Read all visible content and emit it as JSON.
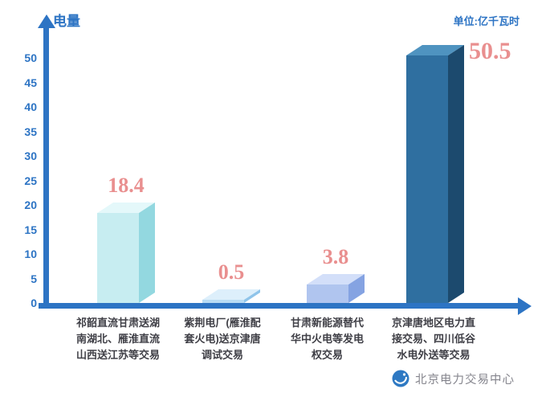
{
  "chart_data": {
    "type": "bar",
    "title": "",
    "ylabel": "电量",
    "unit": "单位:亿千瓦时",
    "xlabel": "",
    "ylim": [
      0,
      50
    ],
    "yticks": [
      0,
      5,
      10,
      15,
      20,
      25,
      30,
      35,
      40,
      45,
      50
    ],
    "grid": false,
    "legend": null,
    "categories": [
      "祁韶直流甘肃送湖南湖北、雁淮直流山西送江苏等交易",
      "紫荆电厂(雁淮配套火电)送京津唐调试交易",
      "甘肃新能源替代华中火电等发电权交易",
      "京津唐地区电力直接交易、四川低谷水电外送等交易"
    ],
    "values": [
      18.4,
      0.5,
      3.8,
      50.5
    ],
    "bar_colors": [
      {
        "front": "#c7edf1",
        "top": "#e4f8fa",
        "side": "#93d8e0"
      },
      {
        "front": "#b9dcf4",
        "top": "#ddeffb",
        "side": "#8fc4ea"
      },
      {
        "front": "#b0c5ef",
        "top": "#d3dff9",
        "side": "#85a3e2"
      },
      {
        "front": "#2f6fa0",
        "top": "#4f93c0",
        "side": "#1c4a6e"
      }
    ],
    "axis_color": "#2d74c4",
    "value_label_color": "#e98f8f"
  },
  "footer": {
    "brand": "北京电力交易中心"
  }
}
